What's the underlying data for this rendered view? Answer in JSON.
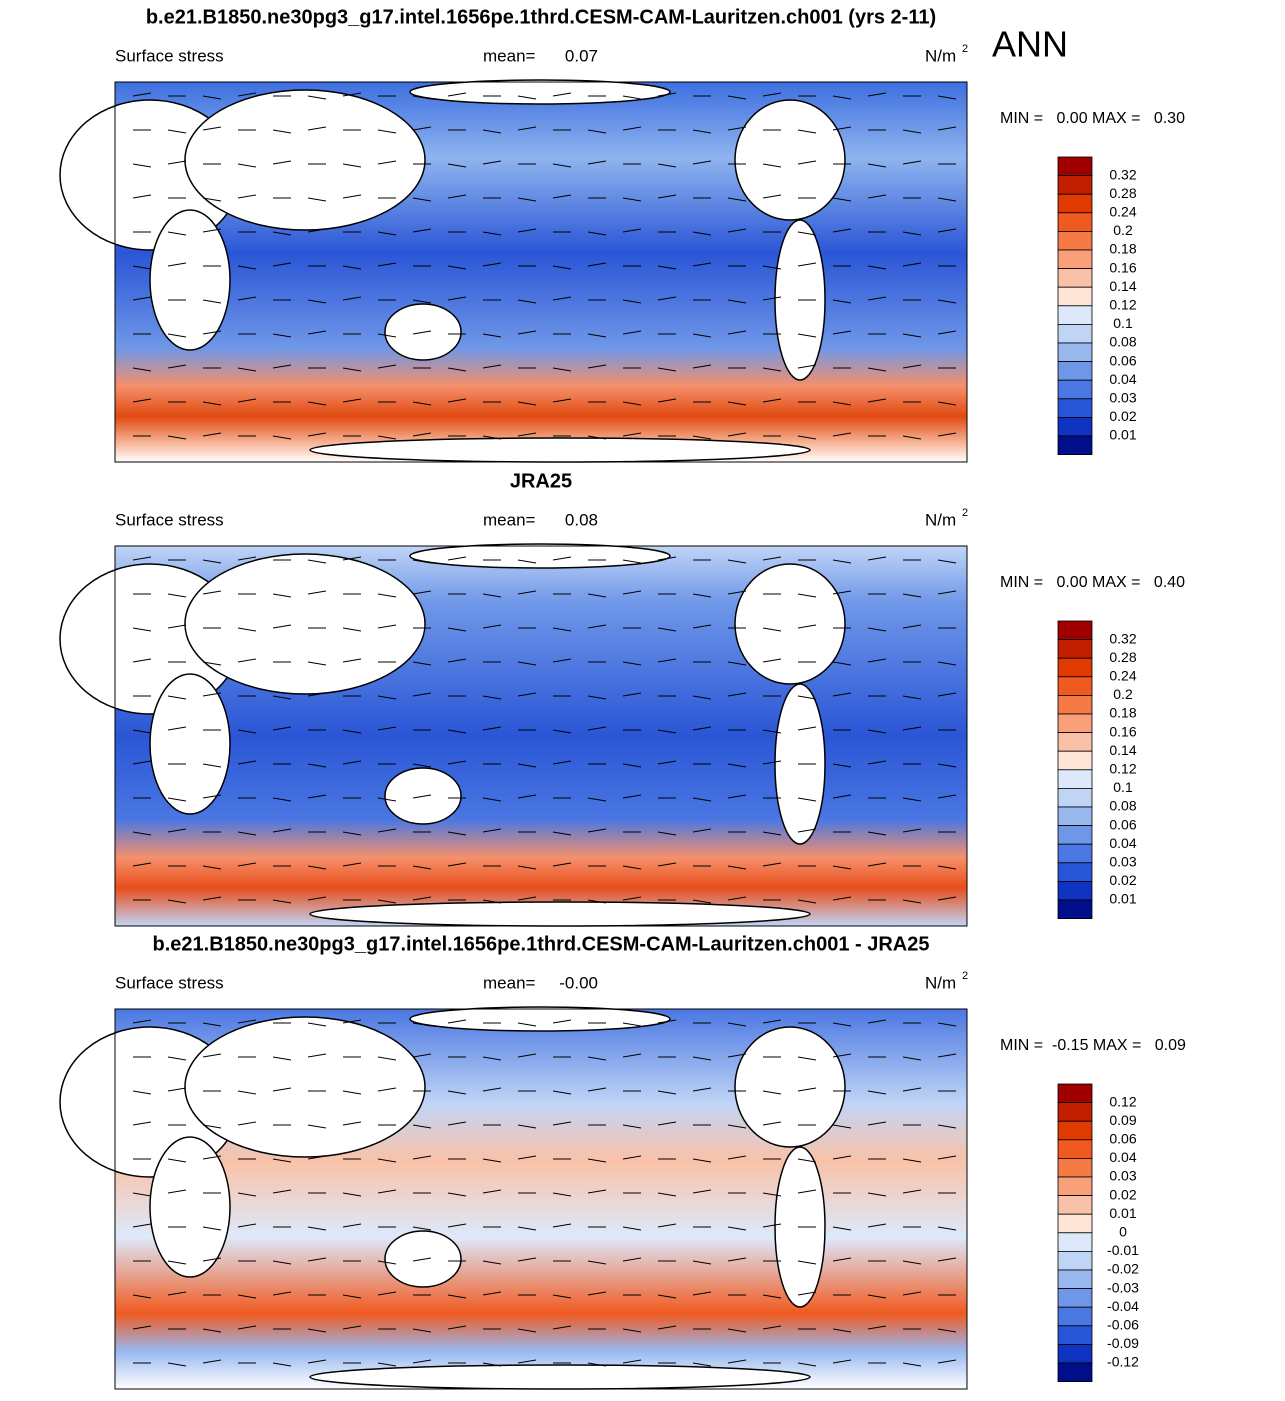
{
  "header": {
    "season": "ANN"
  },
  "panels": [
    {
      "title": "b.e21.B1850.ne30pg3_g17.intel.1656pe.1thrd.CESM-CAM-Lauritzen.ch001 (yrs 2-11)",
      "field": "Surface stress",
      "mean_label": "mean=",
      "mean": "0.07",
      "units": {
        "base": "N/m",
        "sup": "2"
      },
      "minmax": "MIN =   0.00 MAX =   0.30",
      "colorbar": {
        "labels": [
          0.32,
          0.28,
          0.24,
          0.2,
          0.18,
          0.16,
          0.14,
          0.12,
          0.1,
          0.08,
          0.06,
          0.04,
          0.03,
          0.02,
          0.01
        ],
        "colors": [
          "#a00000",
          "#c21f00",
          "#e03a00",
          "#f05a20",
          "#f57a45",
          "#f7a07a",
          "#f9c2a8",
          "#fde6d8",
          "#dde9fb",
          "#c0d5f6",
          "#98b8ef",
          "#6f97e8",
          "#4a77e2",
          "#2855d6",
          "#0d33c0",
          "#000e8a"
        ]
      }
    },
    {
      "title": "JRA25",
      "field": "Surface stress",
      "mean_label": "mean=",
      "mean": "0.08",
      "units": {
        "base": "N/m",
        "sup": "2"
      },
      "minmax": "MIN =   0.00 MAX =   0.40",
      "colorbar": {
        "labels": [
          0.32,
          0.28,
          0.24,
          0.2,
          0.18,
          0.16,
          0.14,
          0.12,
          0.1,
          0.08,
          0.06,
          0.04,
          0.03,
          0.02,
          0.01
        ],
        "colors": [
          "#a00000",
          "#c21f00",
          "#e03a00",
          "#f05a20",
          "#f57a45",
          "#f7a07a",
          "#f9c2a8",
          "#fde6d8",
          "#dde9fb",
          "#c0d5f6",
          "#98b8ef",
          "#6f97e8",
          "#4a77e2",
          "#2855d6",
          "#0d33c0",
          "#000e8a"
        ]
      }
    },
    {
      "title": "b.e21.B1850.ne30pg3_g17.intel.1656pe.1thrd.CESM-CAM-Lauritzen.ch001 - JRA25",
      "field": "Surface stress",
      "mean_label": "mean=",
      "mean": "-0.00",
      "units": {
        "base": "N/m",
        "sup": "2"
      },
      "minmax": "MIN =  -0.15 MAX =   0.09",
      "colorbar": {
        "labels": [
          0.12,
          0.09,
          0.06,
          0.04,
          0.03,
          0.02,
          0.01,
          0,
          -0.01,
          -0.02,
          -0.03,
          -0.04,
          -0.06,
          -0.09,
          -0.12
        ],
        "colors": [
          "#a00000",
          "#c21f00",
          "#e03a00",
          "#f05a20",
          "#f57a45",
          "#f7a07a",
          "#f9c2a8",
          "#fde6d8",
          "#dde9fb",
          "#c0d5f6",
          "#98b8ef",
          "#6f97e8",
          "#4a77e2",
          "#2855d6",
          "#0d33c0",
          "#000e8a"
        ]
      }
    }
  ]
}
